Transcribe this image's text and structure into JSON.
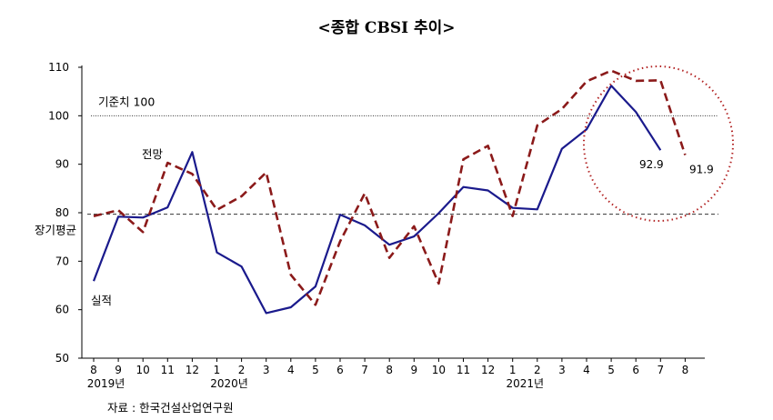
{
  "chart_data": {
    "type": "line",
    "title": "<종합 CBSI 추이>",
    "source": "자료 : 한국건설산업연구원",
    "x": [
      "8",
      "9",
      "10",
      "11",
      "12",
      "1",
      "2",
      "3",
      "4",
      "5",
      "6",
      "7",
      "8",
      "9",
      "10",
      "11",
      "12",
      "1",
      "2",
      "3",
      "4",
      "5",
      "6",
      "7",
      "8"
    ],
    "year_labels": [
      {
        "label": "2019년",
        "start": 0,
        "end": 4
      },
      {
        "label": "2020년",
        "start": 5,
        "end": 16
      },
      {
        "label": "2021년",
        "start": 17,
        "end": 24
      }
    ],
    "ylim": [
      50,
      110
    ],
    "yticks": [
      50,
      60,
      70,
      80,
      90,
      100,
      110
    ],
    "grid": false,
    "series": [
      {
        "name": "실적",
        "style": "solid",
        "color": "#1a1a8c",
        "values": [
          65.9,
          79.2,
          79.0,
          81.1,
          92.5,
          71.8,
          68.9,
          59.3,
          60.5,
          64.8,
          79.6,
          77.4,
          73.4,
          75.1,
          79.9,
          85.3,
          84.6,
          81.0,
          80.7,
          93.2,
          97.2,
          106.2,
          100.8,
          92.9,
          null
        ]
      },
      {
        "name": "전망",
        "style": "dashed",
        "color": "#8b1a1a",
        "values": [
          79.3,
          80.5,
          76.0,
          90.3,
          88.0,
          80.6,
          83.4,
          88.3,
          67.2,
          61.0,
          74.1,
          84.0,
          70.7,
          77.2,
          65.4,
          91.0,
          93.8,
          79.3,
          98.0,
          101.4,
          107.1,
          109.3,
          107.2,
          107.3,
          91.9
        ]
      }
    ],
    "reference_lines": [
      {
        "label": "기준치 100",
        "value": 100,
        "style": "dotted"
      },
      {
        "label": "장기평균",
        "value": 79.7,
        "style": "dashed"
      }
    ],
    "annotations": [
      {
        "text": "92.9",
        "series": "실적",
        "index": 23
      },
      {
        "text": "91.9",
        "series": "전망",
        "index": 24
      }
    ],
    "highlight": "dotted circle around the last months of 2021",
    "colors": {
      "axis": "#000000",
      "circle": "#b22222"
    }
  }
}
